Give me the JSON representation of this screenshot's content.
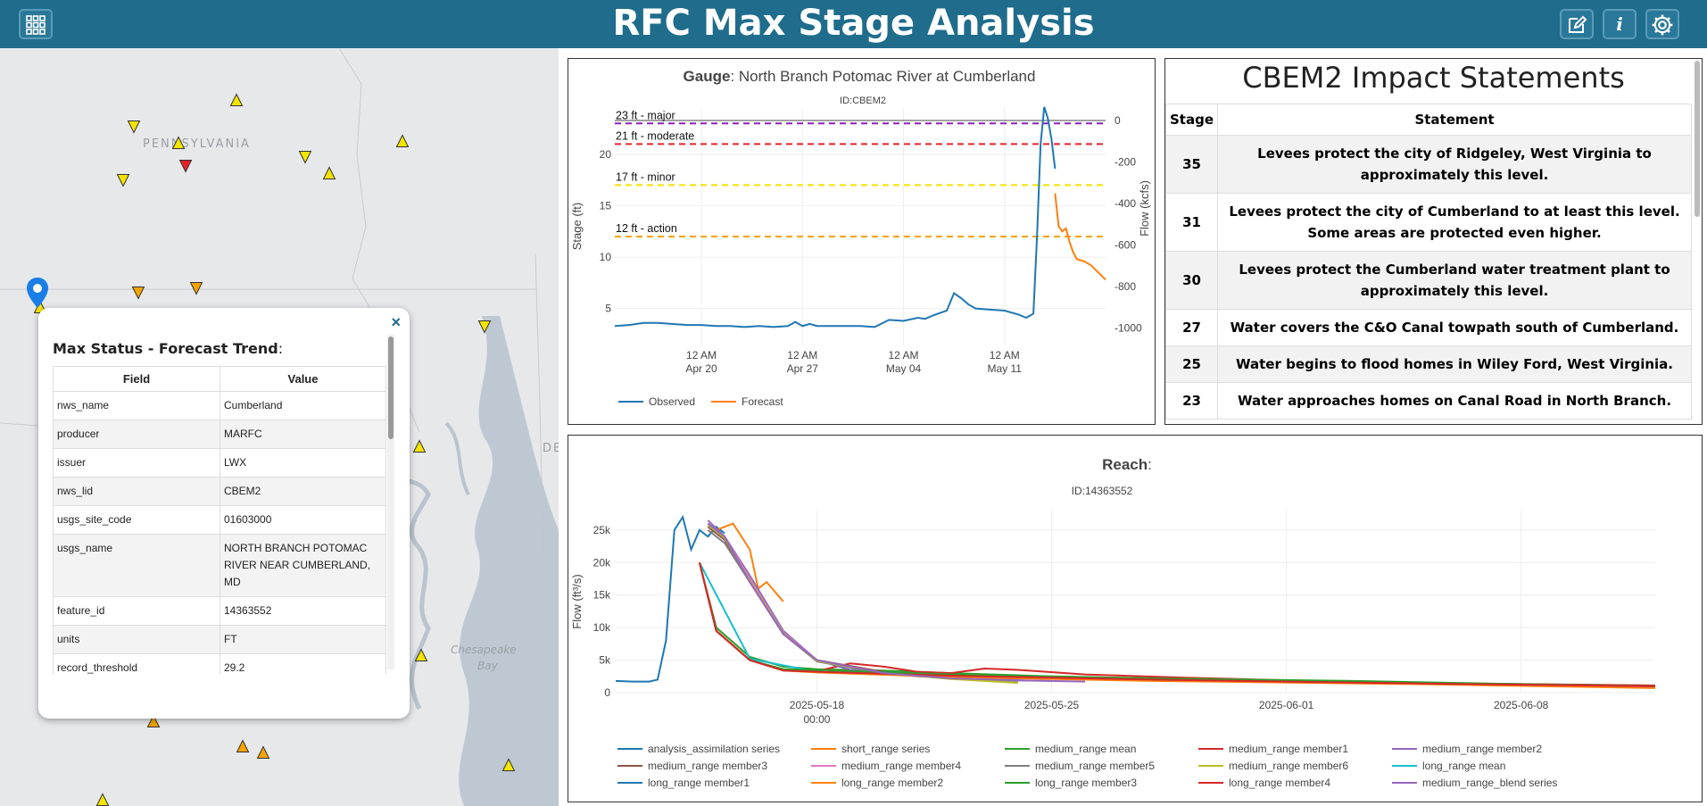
{
  "header": {
    "title": "RFC Max Stage Analysis",
    "apps_icon": "grid-icon",
    "edit_icon": "edit-icon",
    "info_label": "i",
    "settings_icon": "gear-icon",
    "bg_color": "#1f6c8c"
  },
  "map": {
    "state_labels": [
      "PENNSYLVANIA"
    ],
    "water_labels": [
      "Chesapeake",
      "Bay"
    ],
    "edge_label": "DE"
  },
  "popup": {
    "title": "Max Status - Forecast Trend",
    "title_suffix": ":",
    "close_label": "×",
    "columns": [
      "Field",
      "Value"
    ],
    "rows": [
      {
        "field": "nws_name",
        "value": "Cumberland"
      },
      {
        "field": "producer",
        "value": "MARFC"
      },
      {
        "field": "issuer",
        "value": "LWX"
      },
      {
        "field": "nws_lid",
        "value": "CBEM2"
      },
      {
        "field": "usgs_site_code",
        "value": "01603000"
      },
      {
        "field": "usgs_name",
        "value": "NORTH BRANCH POTOMAC RIVER NEAR CUMBERLAND, MD"
      },
      {
        "field": "feature_id",
        "value": "14363552"
      },
      {
        "field": "units",
        "value": "FT"
      },
      {
        "field": "record_threshold",
        "value": "29.2"
      }
    ]
  },
  "impact": {
    "title": "CBEM2 Impact Statements",
    "columns": [
      "Stage",
      "Statement"
    ],
    "rows": [
      {
        "stage": "35",
        "statement": "Levees protect the city of Ridgeley, West Virginia to approximately this level."
      },
      {
        "stage": "31",
        "statement": "Levees protect the city of Cumberland to at least this level. Some areas are protected even higher."
      },
      {
        "stage": "30",
        "statement": "Levees protect the Cumberland water treatment plant to approximately this level."
      },
      {
        "stage": "27",
        "statement": "Water covers the C&O Canal towpath south of Cumberland."
      },
      {
        "stage": "25",
        "statement": "Water begins to flood homes in Wiley Ford, West Virginia."
      },
      {
        "stage": "23",
        "statement": "Water approaches homes on Canal Road in North Branch."
      }
    ]
  },
  "chart_data": [
    {
      "type": "line",
      "title_bold": "Gauge",
      "title": ": North Branch Potomac River at Cumberland",
      "subtitle": "ID:CBEM2",
      "ylabel": "Stage (ft)",
      "y2label": "Flow (kcfs)",
      "ylim": [
        1.5,
        24.5
      ],
      "y2lim": [
        -1080,
        60
      ],
      "y_ticks": [
        5,
        10,
        15,
        20
      ],
      "y2_ticks": [
        0,
        -200,
        -400,
        -600,
        -800,
        -1000
      ],
      "x_ticks": [
        {
          "x": "2025-04-20",
          "l1": "12 AM",
          "l2": "Apr 20"
        },
        {
          "x": "2025-04-27",
          "l1": "12 AM",
          "l2": "Apr 27"
        },
        {
          "x": "2025-05-04",
          "l1": "12 AM",
          "l2": "May 04"
        },
        {
          "x": "2025-05-11",
          "l1": "12 AM",
          "l2": "May 11"
        }
      ],
      "xlim": [
        "2025-04-14",
        "2025-05-18"
      ],
      "thresholds": [
        {
          "label": "23 ft - major",
          "value": 23,
          "color": "#8a1fbf"
        },
        {
          "label": "21 ft - moderate",
          "value": 21,
          "color": "#e8222a"
        },
        {
          "label": "17 ft - minor",
          "value": 17,
          "color": "#f2e200"
        },
        {
          "label": "12 ft - action",
          "value": 12,
          "color": "#f5a300"
        }
      ],
      "series": [
        {
          "name": "Observed",
          "color": "#1f77b4",
          "x": [
            "2025-04-14",
            "2025-04-15",
            "2025-04-16",
            "2025-04-17",
            "2025-04-18",
            "2025-04-19",
            "2025-04-20",
            "2025-04-21",
            "2025-04-22",
            "2025-04-23",
            "2025-04-24",
            "2025-04-25",
            "2025-04-26",
            "2025-04-26T12",
            "2025-04-27",
            "2025-04-27T12",
            "2025-04-28",
            "2025-04-29",
            "2025-04-30",
            "2025-05-01",
            "2025-05-02",
            "2025-05-03",
            "2025-05-04",
            "2025-05-05",
            "2025-05-05T12",
            "2025-05-06",
            "2025-05-07",
            "2025-05-07T12",
            "2025-05-08",
            "2025-05-08T12",
            "2025-05-09",
            "2025-05-10",
            "2025-05-11",
            "2025-05-12",
            "2025-05-12T12",
            "2025-05-13",
            "2025-05-13T06",
            "2025-05-13T12",
            "2025-05-13T18",
            "2025-05-14",
            "2025-05-14T06",
            "2025-05-14T12"
          ],
          "y": [
            3.3,
            3.4,
            3.6,
            3.6,
            3.5,
            3.4,
            3.4,
            3.3,
            3.3,
            3.2,
            3.3,
            3.2,
            3.3,
            3.7,
            3.3,
            3.5,
            3.3,
            3.3,
            3.3,
            3.3,
            3.2,
            3.9,
            3.8,
            4.1,
            4.0,
            4.3,
            4.8,
            6.5,
            6.0,
            5.4,
            5.0,
            4.9,
            4.8,
            4.4,
            4.1,
            4.5,
            12.0,
            21.0,
            24.6,
            23.5,
            21.5,
            18.6
          ]
        },
        {
          "name": "Forecast",
          "color": "#ff7f0e",
          "x": [
            "2025-05-14T12",
            "2025-05-14T18",
            "2025-05-15",
            "2025-05-15T06",
            "2025-05-15T12",
            "2025-05-15T18",
            "2025-05-16",
            "2025-05-16T12",
            "2025-05-17",
            "2025-05-17T12",
            "2025-05-18"
          ],
          "y": [
            16.2,
            13.0,
            12.5,
            12.8,
            11.5,
            10.5,
            9.8,
            9.6,
            9.2,
            8.5,
            7.8
          ]
        }
      ]
    },
    {
      "type": "line",
      "title_bold": "Reach",
      "title": ":",
      "subtitle": "ID:14363552",
      "ylabel": "Flow (ft³/s)",
      "ylim": [
        0,
        28000
      ],
      "y_ticks": [
        {
          "v": 0,
          "l": "0"
        },
        {
          "v": 5000,
          "l": "5k"
        },
        {
          "v": 10000,
          "l": "10k"
        },
        {
          "v": 15000,
          "l": "15k"
        },
        {
          "v": 20000,
          "l": "20k"
        },
        {
          "v": 25000,
          "l": "25k"
        }
      ],
      "xlim": [
        "2025-05-12",
        "2025-06-12"
      ],
      "x_ticks": [
        {
          "x": "2025-05-18",
          "l1": "2025-05-18",
          "l2": "00:00"
        },
        {
          "x": "2025-05-25",
          "l1": "2025-05-25",
          "l2": ""
        },
        {
          "x": "2025-06-01",
          "l1": "2025-06-01",
          "l2": ""
        },
        {
          "x": "2025-06-08",
          "l1": "2025-06-08",
          "l2": ""
        }
      ],
      "series": [
        {
          "name": "analysis_assimilation series",
          "color": "#1f77b4",
          "x": [
            "2025-05-12",
            "2025-05-12T12",
            "2025-05-13",
            "2025-05-13T06",
            "2025-05-13T12",
            "2025-05-13T18",
            "2025-05-14",
            "2025-05-14T06",
            "2025-05-14T12",
            "2025-05-14T18",
            "2025-05-15",
            "2025-05-15T06"
          ],
          "y": [
            1800,
            1700,
            1700,
            2000,
            8000,
            25000,
            27000,
            22000,
            25000,
            24000,
            25500,
            24500
          ]
        },
        {
          "name": "short_range series",
          "color": "#ff7f0e",
          "x": [
            "2025-05-15",
            "2025-05-15T12",
            "2025-05-16",
            "2025-05-16T06",
            "2025-05-16T12",
            "2025-05-17"
          ],
          "y": [
            25000,
            26000,
            22000,
            16000,
            17000,
            14000
          ]
        },
        {
          "name": "medium_range mean",
          "color": "#2ca02c",
          "x": [
            "2025-05-14T12",
            "2025-05-15",
            "2025-05-16",
            "2025-05-17",
            "2025-05-18",
            "2025-05-19",
            "2025-05-20",
            "2025-05-22",
            "2025-05-25",
            "2025-05-28",
            "2025-06-01",
            "2025-06-05",
            "2025-06-08",
            "2025-06-12"
          ],
          "y": [
            20000,
            10000,
            5500,
            4000,
            3600,
            3500,
            3400,
            3000,
            2500,
            2200,
            1800,
            1500,
            1300,
            1100
          ]
        },
        {
          "name": "medium_range member1",
          "color": "#d62728",
          "x": [
            "2025-05-14T12",
            "2025-05-15",
            "2025-05-16",
            "2025-05-17",
            "2025-05-18",
            "2025-05-19",
            "2025-05-20",
            "2025-05-21",
            "2025-05-22",
            "2025-05-23",
            "2025-05-24",
            "2025-05-26",
            "2025-05-29",
            "2025-06-01",
            "2025-06-05",
            "2025-06-12"
          ],
          "y": [
            20000,
            9500,
            5000,
            3500,
            3300,
            4500,
            4000,
            3200,
            3000,
            3700,
            3500,
            2800,
            2300,
            1900,
            1500,
            1100
          ]
        },
        {
          "name": "medium_range member2",
          "color": "#9467bd",
          "x": [
            "2025-05-14T18",
            "2025-05-15T06",
            "2025-05-16",
            "2025-05-17",
            "2025-05-18",
            "2025-05-19",
            "2025-05-21",
            "2025-05-23",
            "2025-05-25"
          ],
          "y": [
            26500,
            24000,
            18000,
            9500,
            5000,
            3500,
            2500,
            2000,
            1800
          ]
        },
        {
          "name": "medium_range member3",
          "color": "#8c564b",
          "x": [
            "2025-05-14T18",
            "2025-05-15T06",
            "2025-05-16",
            "2025-05-17",
            "2025-05-18",
            "2025-05-20",
            "2025-05-22",
            "2025-05-24"
          ],
          "y": [
            25500,
            23500,
            17000,
            9000,
            5000,
            3200,
            2300,
            2000
          ]
        },
        {
          "name": "medium_range member4",
          "color": "#e377c2",
          "x": [
            "2025-05-14T18",
            "2025-05-15T06",
            "2025-05-16",
            "2025-05-17",
            "2025-05-18",
            "2025-05-20",
            "2025-05-22",
            "2025-05-24"
          ],
          "y": [
            26000,
            24000,
            17500,
            9200,
            5000,
            3000,
            2200,
            1800
          ]
        },
        {
          "name": "medium_range member5",
          "color": "#7f7f7f",
          "x": [
            "2025-05-14T18",
            "2025-05-15T06",
            "2025-05-16",
            "2025-05-17",
            "2025-05-18",
            "2025-05-20",
            "2025-05-22",
            "2025-05-24"
          ],
          "y": [
            25000,
            23000,
            17000,
            9000,
            4800,
            2900,
            2200,
            1800
          ]
        },
        {
          "name": "medium_range member6",
          "color": "#bcbd22",
          "x": [
            "2025-05-14T18",
            "2025-05-15T06",
            "2025-05-16",
            "2025-05-17",
            "2025-05-18",
            "2025-05-20",
            "2025-05-22",
            "2025-05-24"
          ],
          "y": [
            25800,
            23800,
            17200,
            9100,
            4900,
            3000,
            2100,
            1500
          ]
        },
        {
          "name": "long_range mean",
          "color": "#17becf",
          "x": [
            "2025-05-14T12",
            "2025-05-16",
            "2025-05-18",
            "2025-05-22",
            "2025-05-28",
            "2025-06-05",
            "2025-06-12"
          ],
          "y": [
            20000,
            5200,
            3200,
            2700,
            2100,
            1500,
            1000
          ]
        },
        {
          "name": "long_range member1",
          "color": "#1f77b4",
          "x": [
            "2025-05-14T12",
            "2025-05-15",
            "2025-05-16",
            "2025-05-17",
            "2025-05-18",
            "2025-05-22",
            "2025-05-28",
            "2025-06-05",
            "2025-06-12"
          ],
          "y": [
            20000,
            9500,
            5000,
            3500,
            3200,
            2600,
            2000,
            1500,
            900
          ]
        },
        {
          "name": "long_range member2",
          "color": "#ff7f0e",
          "x": [
            "2025-05-14T12",
            "2025-05-15",
            "2025-05-16",
            "2025-05-17",
            "2025-05-18",
            "2025-05-22",
            "2025-05-28",
            "2025-06-05",
            "2025-06-12"
          ],
          "y": [
            20000,
            9500,
            5000,
            3400,
            3100,
            2400,
            1800,
            1300,
            700
          ]
        },
        {
          "name": "long_range member3",
          "color": "#2ca02c",
          "x": [
            "2025-05-14T12",
            "2025-05-15",
            "2025-05-16",
            "2025-05-17",
            "2025-05-18",
            "2025-05-22",
            "2025-05-28",
            "2025-06-03",
            "2025-06-08",
            "2025-06-12"
          ],
          "y": [
            20000,
            9500,
            5000,
            3600,
            3500,
            2800,
            2200,
            1800,
            1300,
            1000
          ]
        },
        {
          "name": "long_range member4",
          "color": "#d62728",
          "x": [
            "2025-05-14T12",
            "2025-05-15",
            "2025-05-16",
            "2025-05-17",
            "2025-05-18",
            "2025-05-22",
            "2025-05-28",
            "2025-06-05",
            "2025-06-12"
          ],
          "y": [
            20000,
            9500,
            5000,
            3400,
            3200,
            2600,
            2000,
            1400,
            1000
          ]
        },
        {
          "name": "medium_range_blend series",
          "color": "#9467bd",
          "x": [
            "2025-05-14T18",
            "2025-05-15T06",
            "2025-05-16",
            "2025-05-17",
            "2025-05-18",
            "2025-05-20",
            "2025-05-22",
            "2025-05-24",
            "2025-05-26"
          ],
          "y": [
            26000,
            24000,
            17000,
            9000,
            5000,
            3000,
            2200,
            1900,
            1700
          ]
        }
      ]
    }
  ]
}
